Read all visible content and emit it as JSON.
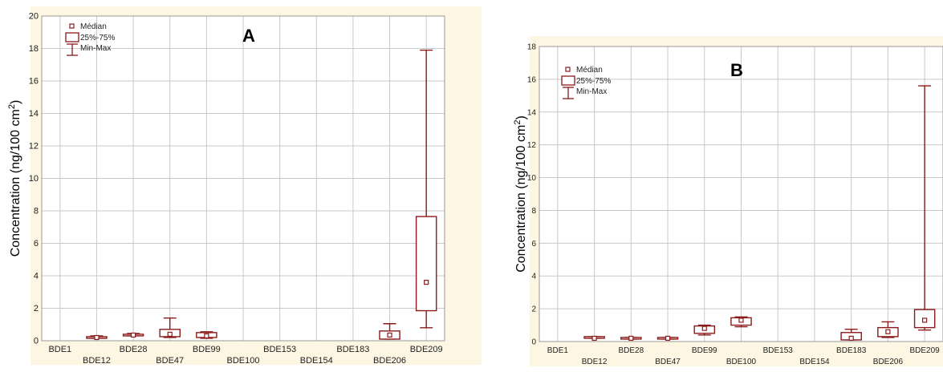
{
  "colors": {
    "frame_bg": "#fdf6e3",
    "plot_bg": "#ffffff",
    "grid": "#c9c9c9",
    "box": "#8b1a1a",
    "axis_text": "#222222"
  },
  "legend": {
    "median": "Médian",
    "iqr": "25%-75%",
    "range": "Min-Max"
  },
  "chart_data": [
    {
      "type": "box",
      "title": "A",
      "ylabel": "Concentration (ng/100 cm",
      "ylabel_sup": "2",
      "ylabel_close": ")",
      "ylim": [
        0,
        20
      ],
      "yticks": [
        "0",
        "2",
        "4",
        "6",
        "8",
        "10",
        "12",
        "14",
        "16",
        "18",
        "20"
      ],
      "grid": true,
      "legend_position": "top-left",
      "categories": [
        "BDE1",
        "BDE12",
        "BDE28",
        "BDE47",
        "BDE99",
        "BDE100",
        "BDE153",
        "BDE154",
        "BDE183",
        "BDE206",
        "BDE209"
      ],
      "boxes": [
        null,
        {
          "min": 0.15,
          "q1": 0.15,
          "median": 0.2,
          "q3": 0.25,
          "max": 0.3
        },
        {
          "min": 0.3,
          "q1": 0.3,
          "median": 0.35,
          "q3": 0.4,
          "max": 0.45
        },
        {
          "min": 0.2,
          "q1": 0.25,
          "median": 0.4,
          "q3": 0.7,
          "max": 1.4
        },
        {
          "min": 0.15,
          "q1": 0.2,
          "median": 0.3,
          "q3": 0.5,
          "max": 0.55
        },
        null,
        null,
        null,
        null,
        {
          "min": 0.1,
          "q1": 0.1,
          "median": 0.35,
          "q3": 0.6,
          "max": 1.05
        },
        {
          "min": 0.8,
          "q1": 1.85,
          "median": 3.6,
          "q3": 7.65,
          "max": 17.9
        }
      ]
    },
    {
      "type": "box",
      "title": "B",
      "ylabel": "Concentration (ng/100 cm",
      "ylabel_sup": "2",
      "ylabel_close": ")",
      "ylim": [
        0,
        18
      ],
      "yticks": [
        "0",
        "2",
        "4",
        "6",
        "8",
        "10",
        "12",
        "14",
        "16",
        "18"
      ],
      "grid": true,
      "legend_position": "top-left",
      "categories": [
        "BDE1",
        "BDE12",
        "BDE28",
        "BDE47",
        "BDE99",
        "BDE100",
        "BDE153",
        "BDE154",
        "BDE183",
        "BDE206",
        "BDE209"
      ],
      "boxes": [
        null,
        {
          "min": 0.2,
          "q1": 0.2,
          "median": 0.2,
          "q3": 0.3,
          "max": 0.3
        },
        {
          "min": 0.15,
          "q1": 0.15,
          "median": 0.2,
          "q3": 0.25,
          "max": 0.25
        },
        {
          "min": 0.15,
          "q1": 0.15,
          "median": 0.2,
          "q3": 0.25,
          "max": 0.25
        },
        {
          "min": 0.4,
          "q1": 0.5,
          "median": 0.8,
          "q3": 0.95,
          "max": 1.0
        },
        {
          "min": 0.9,
          "q1": 1.0,
          "median": 1.3,
          "q3": 1.45,
          "max": 1.5
        },
        null,
        null,
        {
          "min": 0.1,
          "q1": 0.1,
          "median": 0.2,
          "q3": 0.55,
          "max": 0.75
        },
        {
          "min": 0.25,
          "q1": 0.3,
          "median": 0.6,
          "q3": 0.85,
          "max": 1.2
        },
        {
          "min": 0.7,
          "q1": 0.85,
          "median": 1.3,
          "q3": 1.95,
          "max": 15.6
        }
      ]
    }
  ]
}
